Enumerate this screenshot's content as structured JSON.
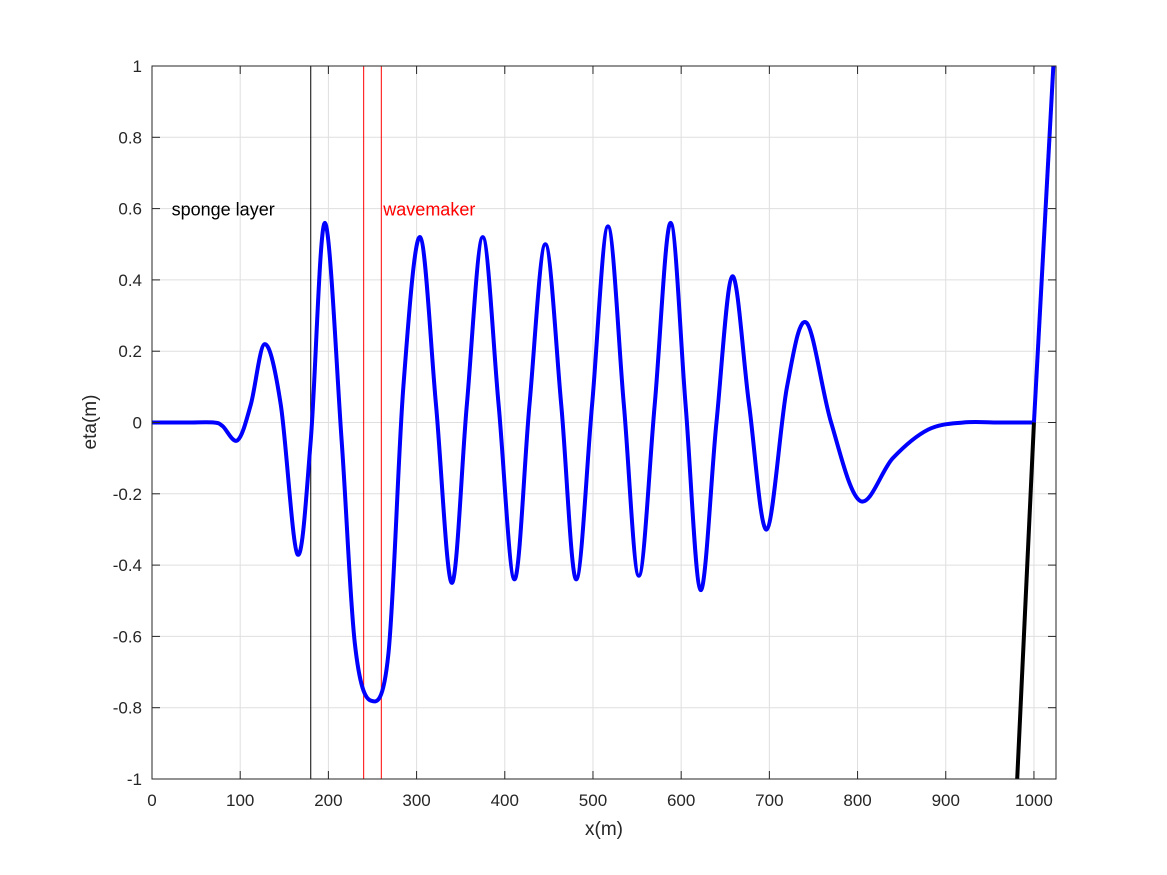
{
  "chart_data": {
    "type": "line",
    "xlabel": "x(m)",
    "ylabel": "eta(m)",
    "xlim": [
      0,
      1025
    ],
    "ylim": [
      -1,
      1
    ],
    "grid": true,
    "xticks": [
      0,
      100,
      200,
      300,
      400,
      500,
      600,
      700,
      800,
      900,
      1000
    ],
    "yticks": [
      -1,
      -0.8,
      -0.6,
      -0.4,
      -0.2,
      0,
      0.2,
      0.4,
      0.6,
      0.8,
      1
    ],
    "xtick_labels": [
      "0",
      "100",
      "200",
      "300",
      "400",
      "500",
      "600",
      "700",
      "800",
      "900",
      "1000"
    ],
    "ytick_labels": [
      "-1",
      "-0.8",
      "-0.6",
      "-0.4",
      "-0.2",
      "0",
      "0.2",
      "0.4",
      "0.6",
      "0.8",
      "1"
    ],
    "series": [
      {
        "color": "#0000ff",
        "x": [
          0,
          40,
          70,
          80,
          97,
          112,
          128,
          146,
          165,
          180,
          196,
          215,
          230,
          248,
          268,
          285,
          304,
          322,
          340,
          357,
          375,
          393,
          411,
          428,
          446,
          464,
          481,
          499,
          517,
          535,
          552,
          570,
          588,
          605,
          622,
          640,
          658,
          677,
          697,
          720,
          742,
          770,
          803,
          840,
          880,
          920,
          960,
          1000
        ],
        "y": [
          0,
          0,
          0,
          -0.01,
          -0.05,
          0.05,
          0.22,
          0.05,
          -0.37,
          -0.05,
          0.56,
          -0.05,
          -0.62,
          -0.78,
          -0.65,
          0.1,
          0.52,
          0.05,
          -0.45,
          0.05,
          0.52,
          0.05,
          -0.44,
          0.05,
          0.5,
          0.05,
          -0.44,
          0.05,
          0.55,
          0.05,
          -0.43,
          0.05,
          0.56,
          0.05,
          -0.47,
          0.0,
          0.41,
          0.05,
          -0.3,
          0.1,
          0.28,
          0.0,
          -0.22,
          -0.1,
          -0.02,
          0,
          0,
          0
        ]
      },
      {
        "color": "#0000ff",
        "x": [
          1000,
          1022
        ],
        "y": [
          0,
          1
        ]
      },
      {
        "color": "#000000",
        "x": [
          981,
          1000
        ],
        "y": [
          -1,
          0
        ]
      }
    ],
    "vlines": [
      {
        "x": 180,
        "color": "#000000"
      },
      {
        "x": 240,
        "color": "#ff0000"
      },
      {
        "x": 260,
        "color": "#ff0000"
      }
    ],
    "annotations": [
      {
        "text": "sponge layer",
        "x": 20,
        "y": 0.6,
        "color": "#000000"
      },
      {
        "text": "wavemaker",
        "x": 260,
        "y": 0.6,
        "color": "#ff0000"
      }
    ]
  }
}
